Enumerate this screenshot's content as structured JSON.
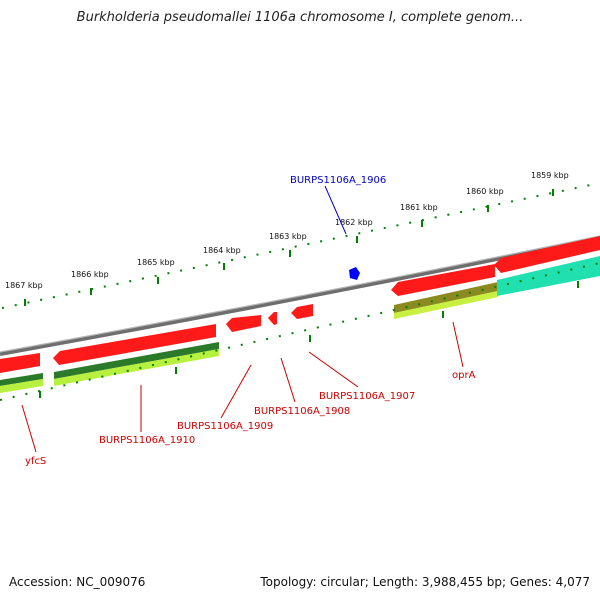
{
  "title": "Burkholderia pseudomallei 1106a chromosome I, complete genom...",
  "footer": {
    "accession": "Accession: NC_009076",
    "topology": "Topology: circular; Length: 3,988,455 bp; Genes: 4,077"
  },
  "colors": {
    "backbone": "#7a7a7a",
    "feature_red": "#ff0000",
    "feature_blue": "#0000ff",
    "dark_green": "#2e7d2e",
    "light_green": "#bfff40",
    "olive": "#8a8a20",
    "teal": "#20e0b0",
    "tick_green": "#008000",
    "label_red": "#cc0000",
    "label_blue": "#0000cc"
  },
  "scale_labels": [
    "1867 kbp",
    "1866 kbp",
    "1865 kbp",
    "1864 kbp",
    "1863 kbp",
    "1862 kbp",
    "1861 kbp",
    "1860 kbp",
    "1859 kbp"
  ],
  "gene_labels": {
    "top": "BURPS1106A_1906",
    "yfcS": "yfcS",
    "g1910": "BURPS1106A_1910",
    "g1909": "BURPS1106A_1909",
    "g1908": "BURPS1106A_1908",
    "g1907": "BURPS1106A_1907",
    "oprA": "oprA"
  }
}
